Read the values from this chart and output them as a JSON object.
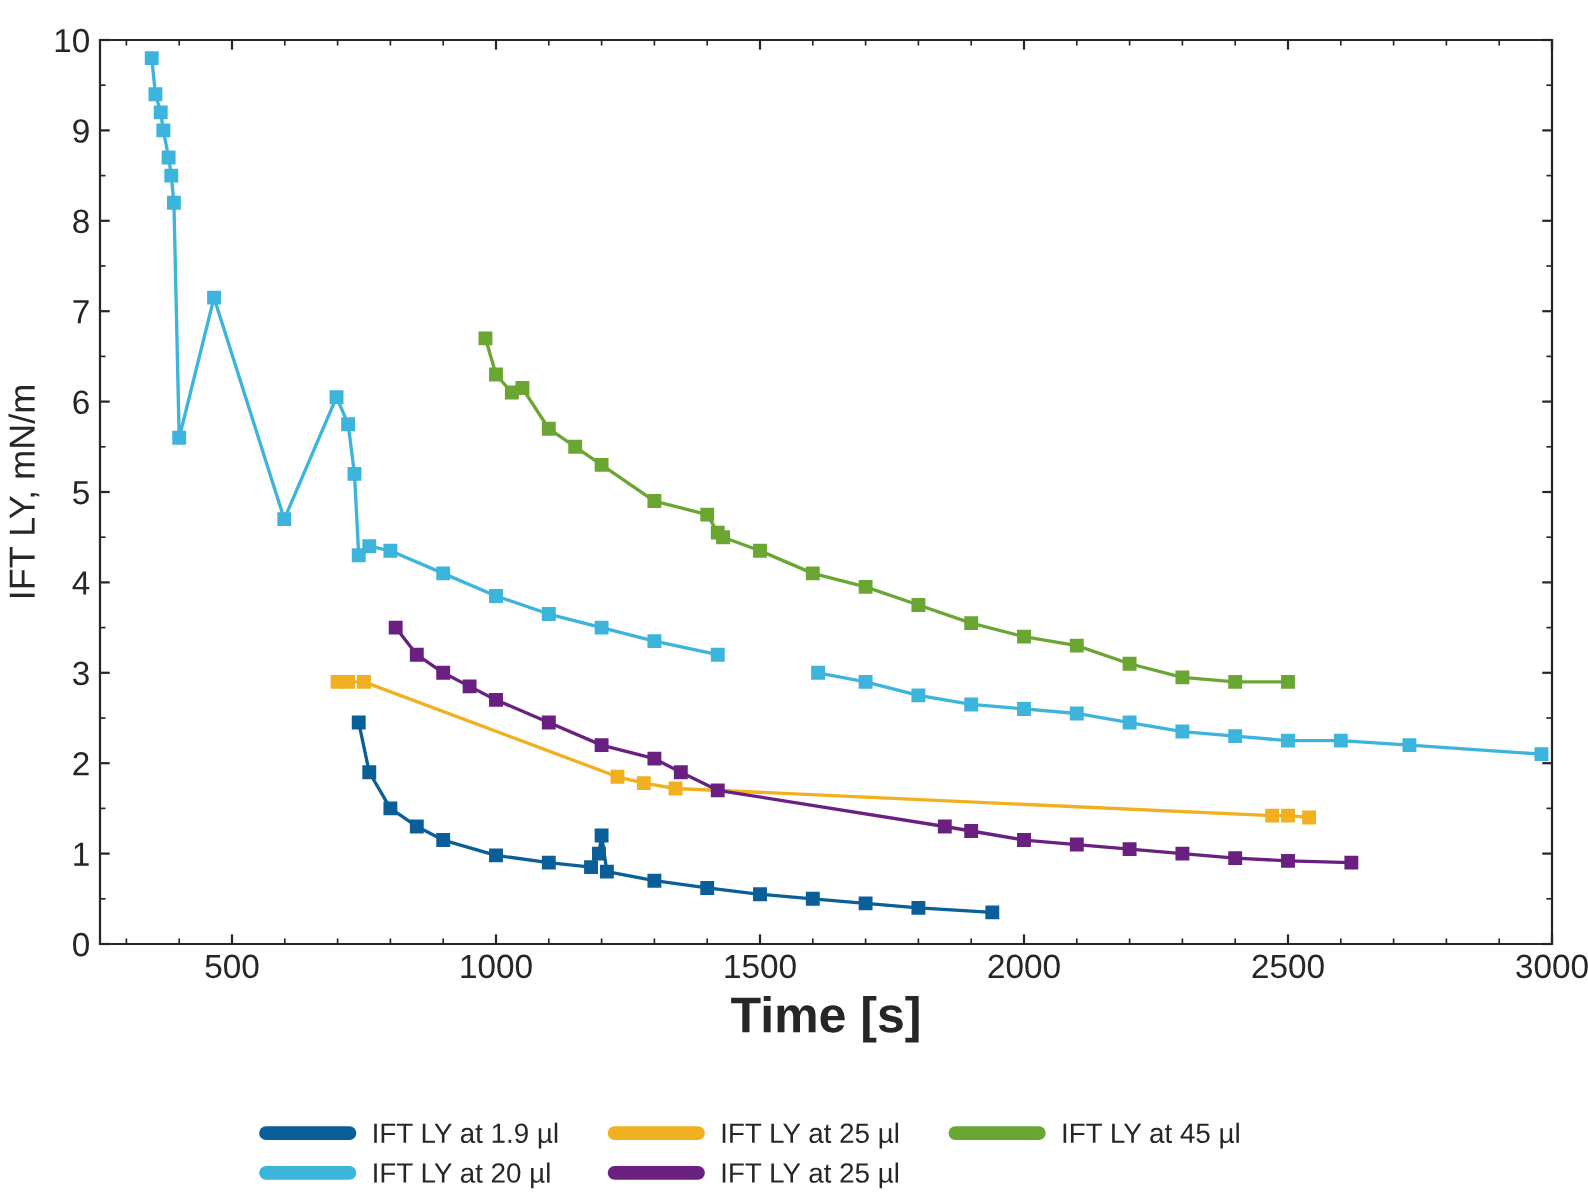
{
  "chart_data": {
    "type": "line",
    "xlabel": "Time [s]",
    "ylabel": "IFT LY, mN/m",
    "xlim": [
      250,
      3000
    ],
    "ylim": [
      0,
      10
    ],
    "xticks": [
      500,
      1000,
      1500,
      2000,
      2500,
      3000
    ],
    "yticks": [
      0,
      1,
      2,
      3,
      4,
      5,
      6,
      7,
      8,
      9,
      10
    ],
    "grid": false,
    "legend": "bottom",
    "marker": "square",
    "line_style": "solid",
    "series": [
      {
        "name": "IFT LY at 1.9 µl",
        "color": "#0a5f98",
        "x": [
          740,
          760,
          800,
          850,
          900,
          1000,
          1100,
          1180,
          1195,
          1200,
          1210,
          1300,
          1400,
          1500,
          1600,
          1700,
          1800,
          1940
        ],
        "values": [
          2.45,
          1.9,
          1.5,
          1.3,
          1.15,
          0.98,
          0.9,
          0.85,
          1.0,
          1.2,
          0.8,
          0.7,
          0.62,
          0.55,
          0.5,
          0.45,
          0.4,
          0.35
        ]
      },
      {
        "name": "IFT LY at 20 µl",
        "color": "#3cb4dc",
        "x": [
          348,
          355,
          365,
          370,
          380,
          385,
          390,
          400,
          466,
          599,
          698,
          720,
          732,
          740,
          760,
          800,
          900,
          1000,
          1100,
          1200,
          1300,
          1420,
          1500,
          1610,
          1700,
          1800,
          1900,
          2000,
          2100,
          2200,
          2300,
          2400,
          2500,
          2600,
          2730,
          2980
        ],
        "values": [
          9.8,
          9.4,
          9.2,
          9.0,
          8.7,
          8.5,
          8.2,
          5.6,
          7.15,
          4.7,
          6.05,
          5.75,
          5.2,
          4.3,
          4.4,
          4.35,
          4.1,
          3.85,
          3.65,
          3.5,
          3.35,
          3.2,
          null,
          3.0,
          2.9,
          2.75,
          2.65,
          2.6,
          2.55,
          2.45,
          2.35,
          2.3,
          2.25,
          2.25,
          2.2,
          2.1
        ]
      },
      {
        "name": "IFT LY at 25 µl",
        "color": "#f0b020",
        "x": [
          700,
          720,
          750,
          1230,
          1280,
          1340,
          2470,
          2500,
          2540
        ],
        "values": [
          2.9,
          2.9,
          2.9,
          1.85,
          1.78,
          1.72,
          1.42,
          1.42,
          1.4
        ]
      },
      {
        "name": "IFT LY at 25 µl",
        "color": "#6a2080",
        "x": [
          810,
          850,
          900,
          950,
          1000,
          1100,
          1200,
          1300,
          1350,
          1420,
          1850,
          1900,
          2000,
          2100,
          2200,
          2300,
          2400,
          2500,
          2620
        ],
        "values": [
          3.5,
          3.2,
          3.0,
          2.85,
          2.7,
          2.45,
          2.2,
          2.05,
          1.9,
          1.7,
          1.3,
          1.25,
          1.15,
          1.1,
          1.05,
          1.0,
          0.95,
          0.92,
          0.9
        ]
      },
      {
        "name": "IFT LY at 45 µl",
        "color": "#6aa632",
        "x": [
          980,
          1000,
          1030,
          1050,
          1100,
          1150,
          1200,
          1300,
          1400,
          1420,
          1430,
          1500,
          1600,
          1700,
          1800,
          1900,
          2000,
          2100,
          2200,
          2300,
          2400,
          2500
        ],
        "values": [
          6.7,
          6.3,
          6.1,
          6.15,
          5.7,
          5.5,
          5.3,
          4.9,
          4.75,
          4.55,
          4.5,
          4.35,
          4.1,
          3.95,
          3.75,
          3.55,
          3.4,
          3.3,
          3.1,
          2.95,
          2.9,
          2.9
        ]
      }
    ]
  }
}
